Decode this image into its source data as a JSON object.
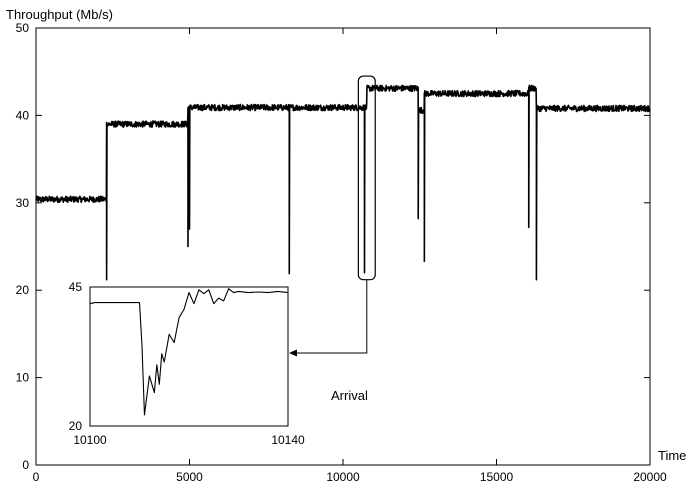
{
  "chart_data": [
    {
      "type": "line",
      "title": "",
      "ylabel": "Throughput (Mb/s)",
      "xlabel": "Time",
      "xlim": [
        0,
        20000
      ],
      "ylim": [
        0,
        50
      ],
      "xticks": [
        0,
        5000,
        10000,
        15000,
        20000
      ],
      "yticks": [
        0,
        10,
        20,
        30,
        40,
        50
      ],
      "grid": false,
      "legend": "none",
      "line_color": "#000000",
      "series": [
        {
          "segments": [
            {
              "x_start": 0,
              "x_end": 2300,
              "level": 30.4,
              "noise": 0.35
            },
            {
              "x_start": 2300,
              "x_end": 4950,
              "level": 39.0,
              "noise": 0.35
            },
            {
              "x_start": 4950,
              "x_end": 10780,
              "level": 40.9,
              "noise": 0.35
            },
            {
              "x_start": 10780,
              "x_end": 12450,
              "level": 43.1,
              "noise": 0.35
            },
            {
              "x_start": 12450,
              "x_end": 12650,
              "level": 40.6,
              "noise": 0.35
            },
            {
              "x_start": 12650,
              "x_end": 16050,
              "level": 42.5,
              "noise": 0.35
            },
            {
              "x_start": 16050,
              "x_end": 16300,
              "level": 43.1,
              "noise": 0.35
            },
            {
              "x_start": 16300,
              "x_end": 20000,
              "level": 40.8,
              "noise": 0.35
            }
          ],
          "dips": [
            {
              "x": 2300,
              "min": 21.2
            },
            {
              "x": 4950,
              "min": 25.0
            },
            {
              "x": 5000,
              "min": 27.0
            },
            {
              "x": 8250,
              "min": 21.9
            },
            {
              "x": 10700,
              "min": 22.0
            },
            {
              "x": 12450,
              "min": 28.2
            },
            {
              "x": 12650,
              "min": 23.3
            },
            {
              "x": 16050,
              "min": 27.2
            },
            {
              "x": 16300,
              "min": 21.2
            }
          ]
        }
      ],
      "highlight": {
        "x_range": [
          10500,
          11050
        ],
        "y_range": [
          21.2,
          44.5
        ]
      }
    },
    {
      "type": "line",
      "title": "",
      "annotation": "Arrival",
      "xlim": [
        10100,
        10140
      ],
      "ylim": [
        20,
        45
      ],
      "xticks": [
        10100,
        10140
      ],
      "yticks": [
        20,
        45
      ],
      "series": [
        {
          "x": [
            10100,
            10101,
            10105,
            10110,
            10110.5,
            10111,
            10112,
            10113,
            10113.5,
            10114,
            10114.5,
            10115,
            10116,
            10117,
            10118,
            10119,
            10120,
            10121,
            10122,
            10123,
            10124,
            10125,
            10126,
            10127,
            10128,
            10129,
            10130,
            10132,
            10134,
            10136,
            10138,
            10140
          ],
          "y": [
            42.0,
            42.2,
            42.2,
            42.2,
            34.5,
            22.0,
            29.0,
            26.0,
            31.0,
            27.5,
            33.0,
            31.5,
            36.5,
            35.0,
            39.5,
            41.0,
            44.0,
            42.0,
            44.5,
            43.8,
            44.5,
            42.0,
            43.0,
            42.5,
            44.7,
            44.0,
            44.2,
            44.0,
            44.1,
            44.0,
            44.2,
            44.0
          ]
        }
      ]
    }
  ]
}
